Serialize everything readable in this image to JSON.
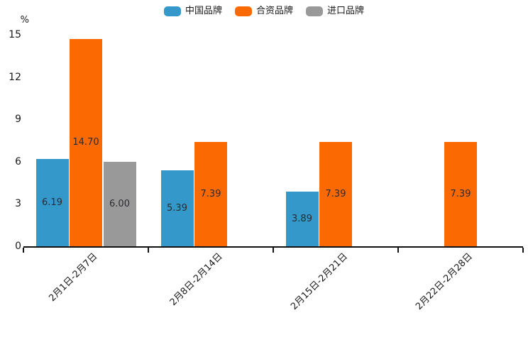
{
  "chart_data": {
    "type": "bar",
    "title": "",
    "unit_label": "%",
    "categories": [
      "2月1日-2月7日",
      "2月8日-2月14日",
      "2月15日-2月21日",
      "2月22日-2月28日"
    ],
    "series": [
      {
        "name": "中国品牌",
        "color": "#3498cb",
        "values": [
          6.19,
          5.39,
          3.89,
          null
        ]
      },
      {
        "name": "合资品牌",
        "color": "#fb6a02",
        "values": [
          14.7,
          7.39,
          7.39,
          7.39
        ]
      },
      {
        "name": "进口品牌",
        "color": "#999999",
        "values": [
          6.0,
          null,
          null,
          null
        ]
      }
    ],
    "value_label_format": "2-decimals",
    "y_ticks": [
      0,
      3,
      6,
      9,
      12,
      15
    ],
    "ylim": [
      0,
      15
    ],
    "legend_position": "top-center",
    "grid": false,
    "axis_color": "#111111",
    "text_color": "#1a1a1a"
  }
}
